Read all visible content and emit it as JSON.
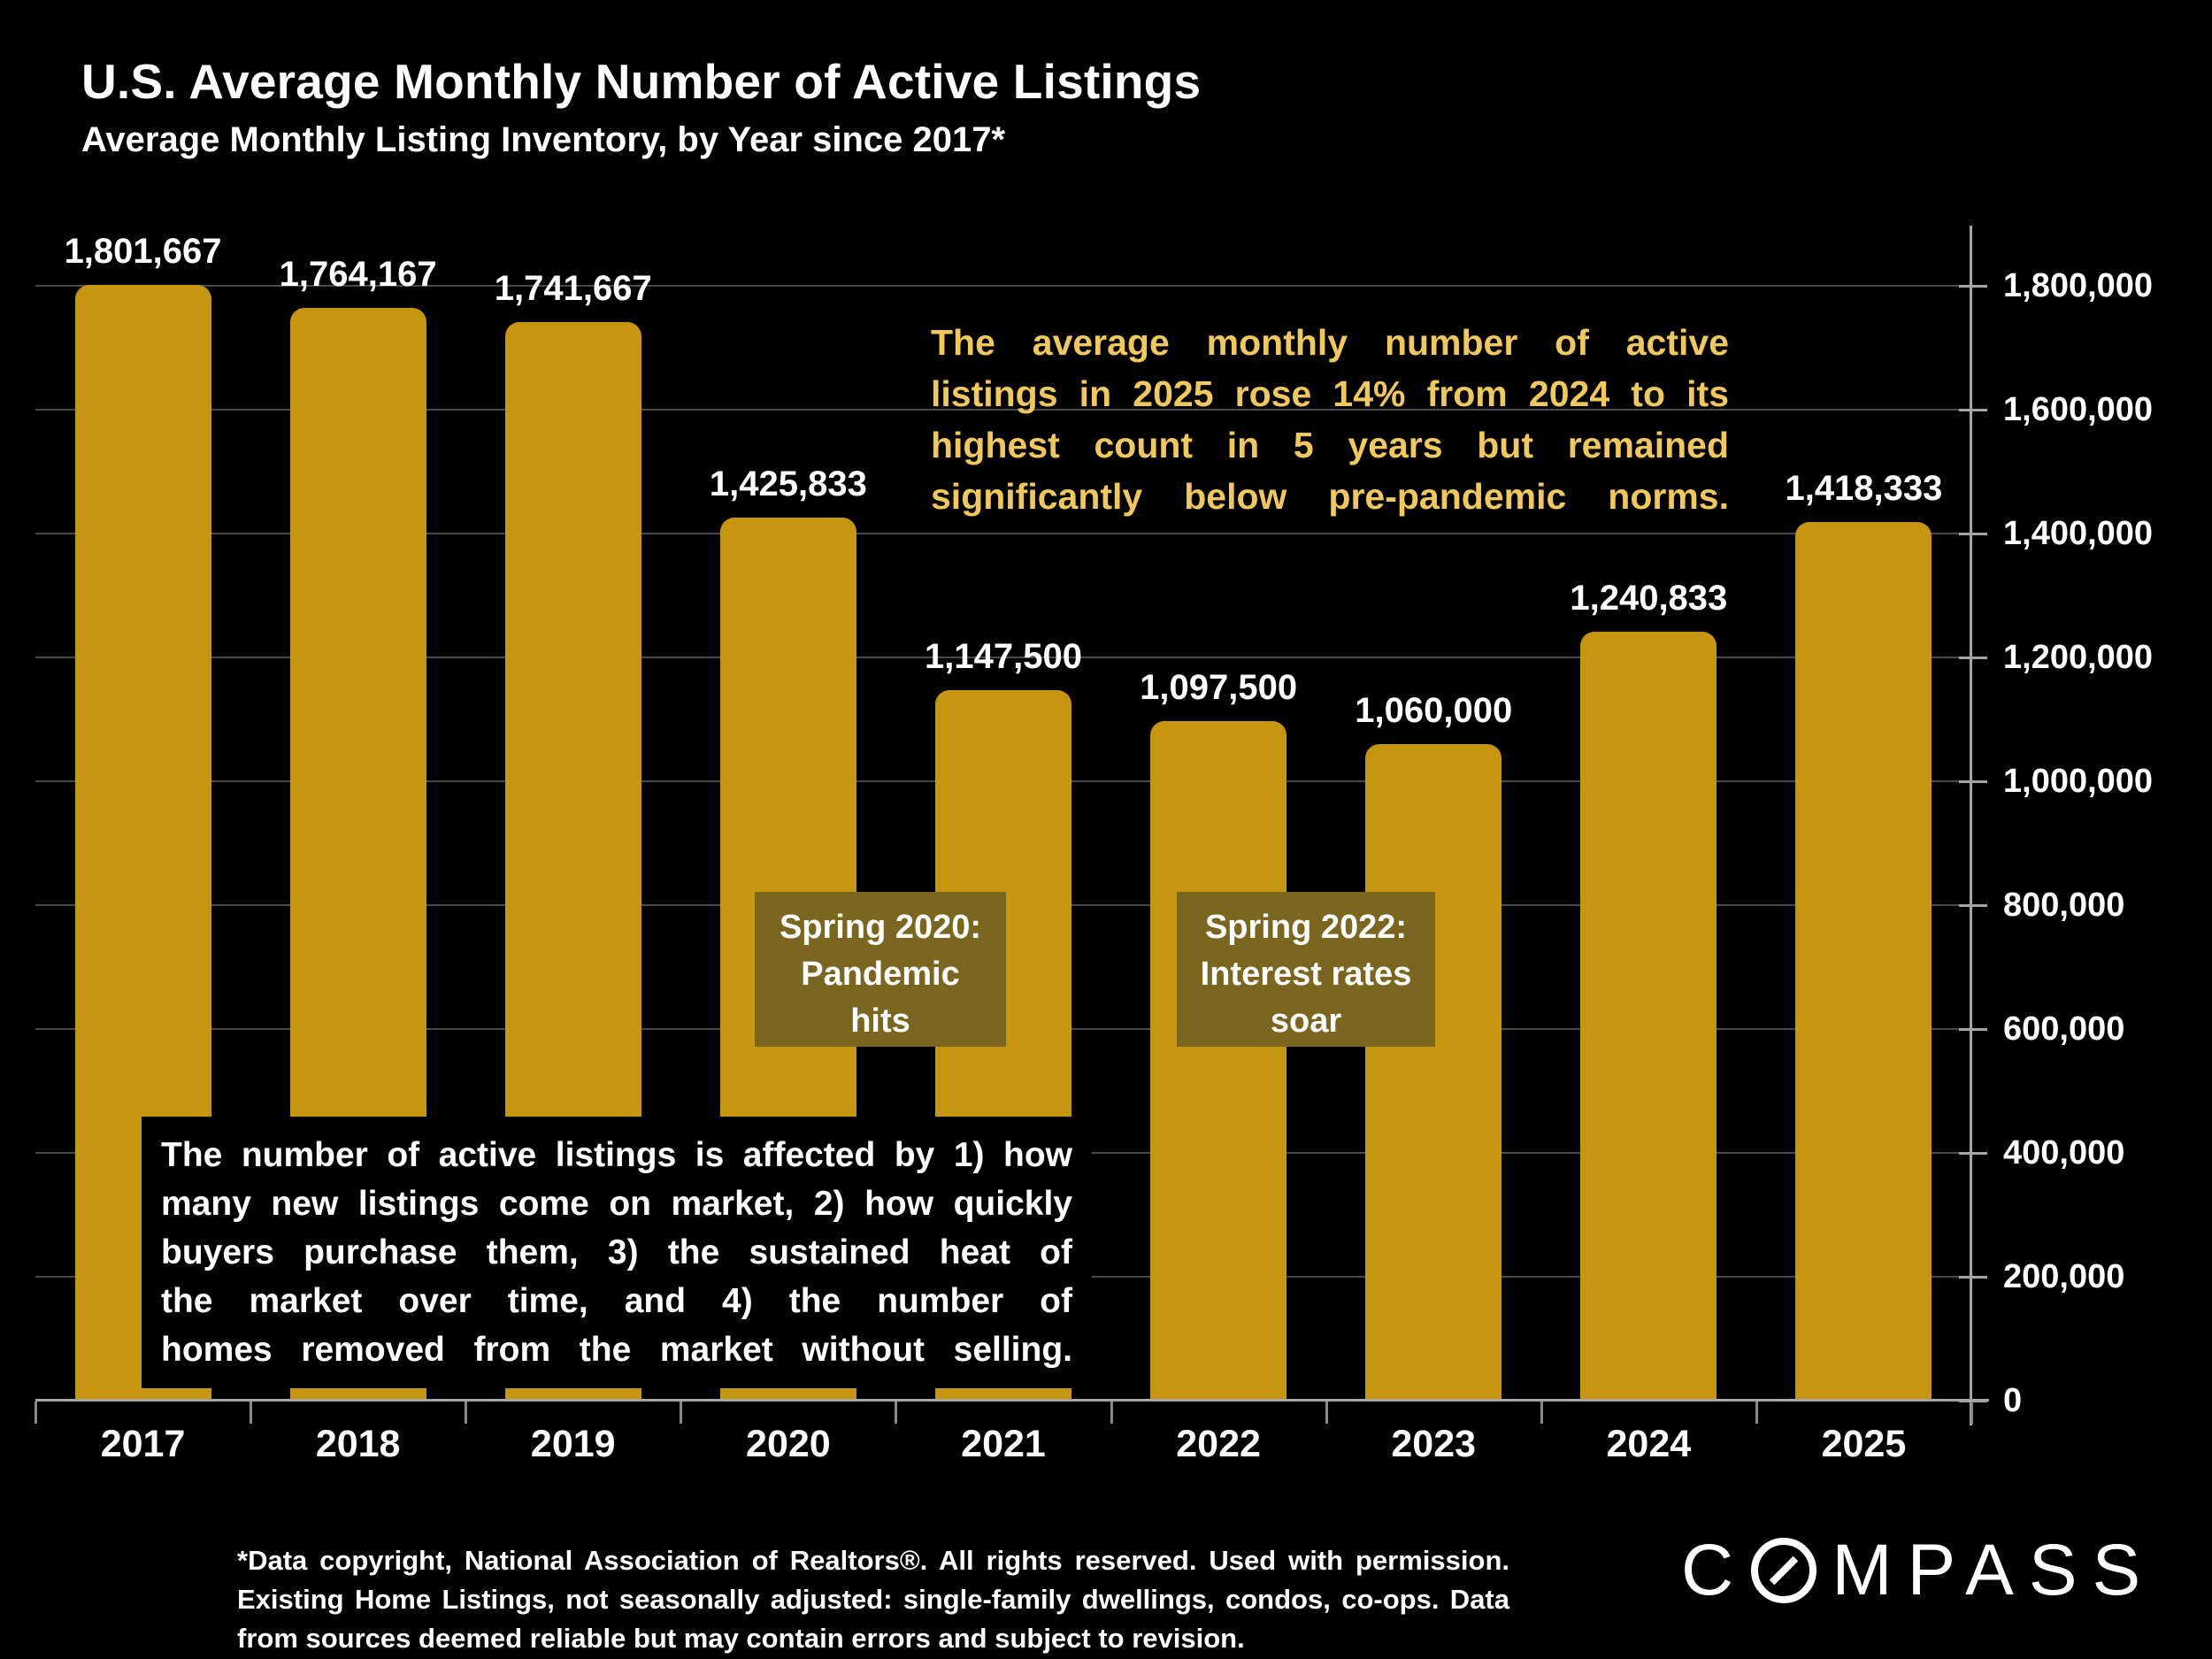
{
  "header": {
    "title": "U.S. Average Monthly Number of Active Listings",
    "subtitle": "Average Monthly Listing Inventory, by Year since 2017*"
  },
  "chart_data": {
    "type": "bar",
    "title": "U.S. Average Monthly Number of Active Listings",
    "subtitle": "Average Monthly Listing Inventory, by Year since 2017*",
    "categories": [
      "2017",
      "2018",
      "2019",
      "2020",
      "2021",
      "2022",
      "2023",
      "2024",
      "2025"
    ],
    "values": [
      1801667,
      1764167,
      1741667,
      1425833,
      1147500,
      1097500,
      1060000,
      1240833,
      1418333
    ],
    "value_labels": [
      "1,801,667",
      "1,764,167",
      "1,741,667",
      "1,425,833",
      "1,147,500",
      "1,097,500",
      "1,060,000",
      "1,240,833",
      "1,418,333"
    ],
    "xlabel": "",
    "ylabel": "",
    "ylim": [
      0,
      1900000
    ],
    "yticks": {
      "values": [
        0,
        200000,
        400000,
        600000,
        800000,
        1000000,
        1200000,
        1400000,
        1600000,
        1800000
      ],
      "labels": [
        "0",
        "200,000",
        "400,000",
        "600,000",
        "800,000",
        "1,000,000",
        "1,200,000",
        "1,400,000",
        "1,600,000",
        "1,800,000"
      ]
    },
    "axis_side": "right",
    "grid": "horizontal",
    "legend": "none",
    "colors": {
      "bar": "#C79611",
      "gridline": "#4a4a4a",
      "axis": "#a6a6a6",
      "tick": "#8a8a8a",
      "text": "#ffffff",
      "background": "#000000"
    }
  },
  "annotations": {
    "highlight_note": {
      "color": "#F1C85C",
      "text": "The average monthly number of active listings in 2025 rose 14% from 2024 to its highest count in 5 years but remained significantly below pre-pandemic norms.",
      "lines": [
        "The average monthly number of active",
        "listings in 2025 rose 14% from 2024 to its",
        "highest count in 5 years but remained",
        "significantly below pre-pandemic norms."
      ]
    },
    "event_boxes": [
      {
        "bg": "#7A661E",
        "line1": "Spring 2020:",
        "line2": "Pandemic",
        "line3": "hits"
      },
      {
        "bg": "#7A661E",
        "line1": "Spring 2022:",
        "line2": "Interest rates",
        "line3": "soar"
      }
    ],
    "explainer_box": {
      "bg": "#000000",
      "text": "The number of active listings is affected by 1) how many new listings come on market, 2) how quickly buyers purchase them, 3) the sustained heat of the market over time, and 4) the number of homes removed from the market without selling.",
      "lines": [
        "The number of active listings is affected by 1) how",
        "many new listings come on market, 2) how quickly",
        "buyers purchase them, 3) the sustained heat of",
        "the market over time, and 4) the number of",
        "homes removed from the market without selling."
      ]
    }
  },
  "footnote": {
    "text": "*Data copyright, National Association of Realtors®. All rights reserved. Used with permission. Existing Home Listings, not seasonally adjusted: single-family dwellings, condos, co-ops. Data from sources deemed reliable but may contain errors and subject to revision.",
    "lines": [
      "*Data copyright, National Association of Realtors®. All rights reserved. Used with permission.",
      "Existing Home Listings, not seasonally adjusted:  single-family dwellings, condos, co-ops. Data",
      "from sources deemed reliable but may contain errors and subject to revision."
    ]
  },
  "logo": {
    "text": "COMPASS",
    "prefix": "C",
    "suffix": "MPASS"
  }
}
